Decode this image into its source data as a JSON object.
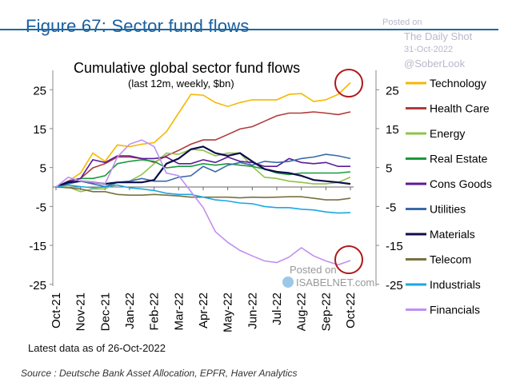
{
  "figure_title": "Figure 67: Sector fund flows",
  "watermarks": {
    "posted_on": "Posted on",
    "site": "The Daily Shot",
    "date": "31-Oct-2022",
    "handle": "@SoberLook",
    "isabel_posted": "Posted on",
    "isabel_site": "ISABELNET.com"
  },
  "footnote": "Latest data as of 26-Oct-2022",
  "source": "Source : Deutsche Bank Asset Allocation, EPFR, Haver Analytics",
  "chart_data": {
    "type": "line",
    "title": "Cumulative global sector fund flows",
    "subtitle": "(last 12m, weekly, $bn)",
    "xlabel": "",
    "ylabel": "",
    "ylim": [
      -25,
      30
    ],
    "yticks": [
      "25",
      "15",
      "5",
      "-5",
      "-15",
      "-25"
    ],
    "yticks_right": [
      "25",
      "15",
      "5",
      "-5",
      "-15",
      "-25"
    ],
    "xticks": [
      "Oct-21",
      "Nov-21",
      "Dec-21",
      "Jan-22",
      "Feb-22",
      "Mar-22",
      "Apr-22",
      "May-22",
      "Jun-22",
      "Jul-22",
      "Aug-22",
      "Sep-22",
      "Oct-22"
    ],
    "x": [
      0,
      0.5,
      1,
      1.5,
      2,
      2.5,
      3,
      3.5,
      4,
      4.5,
      5,
      5.5,
      6,
      6.5,
      7,
      7.5,
      8,
      8.5,
      9,
      9.5,
      10,
      10.5,
      11,
      11.5,
      12
    ],
    "legend_position": "right",
    "series": [
      {
        "name": "Technology",
        "color": "#f5b800",
        "values": [
          0,
          1.5,
          3.6,
          8.7,
          6.6,
          10.8,
          10.4,
          11,
          11.4,
          14.2,
          19,
          23.8,
          23.6,
          21.7,
          20.7,
          21.7,
          22.4,
          22.4,
          22.4,
          23.8,
          24,
          22,
          22.4,
          23.8,
          26.8
        ]
      },
      {
        "name": "Health Care",
        "color": "#b03a3a",
        "values": [
          0,
          1.5,
          2.2,
          4.9,
          6,
          7.7,
          7.7,
          7.3,
          6.3,
          8,
          9.4,
          11,
          12.1,
          12.1,
          13.5,
          14.9,
          15.5,
          16.9,
          18.3,
          19,
          19,
          19.3,
          19,
          18.6,
          19.3
        ]
      },
      {
        "name": "Energy",
        "color": "#8fc34a",
        "values": [
          0,
          0,
          -1.2,
          -0.5,
          -0.5,
          1.2,
          1.5,
          3.2,
          6,
          8.7,
          8.4,
          9.7,
          9.4,
          8,
          8.7,
          8.7,
          5.3,
          2.5,
          2.2,
          1.5,
          1.2,
          0.8,
          0.8,
          1.2,
          2.5
        ]
      },
      {
        "name": "Real Estate",
        "color": "#1a9a3a",
        "values": [
          0,
          1.5,
          2.2,
          2.2,
          2.9,
          6,
          6.6,
          7,
          6.6,
          4.9,
          5.3,
          5.3,
          6,
          5.6,
          6,
          5.6,
          5.3,
          4.6,
          3.6,
          3.2,
          3.6,
          3.6,
          3.6,
          3.6,
          3.9
        ]
      },
      {
        "name": "Cons Goods",
        "color": "#5a1a9a",
        "values": [
          0,
          1.5,
          2.2,
          7,
          6.3,
          8,
          8,
          7.3,
          7.3,
          7.7,
          6,
          6,
          7,
          6.3,
          7.7,
          6.6,
          6.3,
          5.3,
          5.3,
          7.3,
          6.3,
          6,
          6.3,
          5.3,
          5.3
        ]
      },
      {
        "name": "Utilities",
        "color": "#3a6aa8",
        "values": [
          0,
          0.8,
          1.5,
          0.8,
          0.1,
          1.2,
          1.5,
          2.2,
          1.5,
          1.5,
          2.5,
          2.9,
          5.3,
          3.9,
          5.6,
          6.3,
          5.6,
          6.6,
          6.3,
          6.6,
          7.3,
          7.7,
          8.4,
          8,
          7.3
        ]
      },
      {
        "name": "Materials",
        "color": "#0d0d4a",
        "values": [
          0,
          1.2,
          1.5,
          1.2,
          0.8,
          1.2,
          1.2,
          1.2,
          1.8,
          6,
          7.3,
          9.7,
          10.4,
          8.7,
          8,
          8.7,
          6.6,
          4.6,
          3.9,
          3.6,
          2.9,
          1.8,
          1.5,
          1.2,
          0.8
        ]
      },
      {
        "name": "Telecom",
        "color": "#7a7040",
        "values": [
          0,
          -0.2,
          -0.5,
          -1.2,
          -1.2,
          -1.9,
          -2.1,
          -2.1,
          -1.9,
          -2.1,
          -2.3,
          -2.6,
          -2.6,
          -2.6,
          -2.6,
          -2.8,
          -2.6,
          -2.7,
          -2.6,
          -2.5,
          -2.5,
          -2.9,
          -3.3,
          -3.3,
          -2.9
        ]
      },
      {
        "name": "Industrials",
        "color": "#1aa8e0",
        "values": [
          0,
          0.5,
          0.1,
          -0.2,
          0,
          0.5,
          -0.2,
          -0.5,
          -0.9,
          -1.6,
          -1.9,
          -1.9,
          -2.6,
          -3.3,
          -3.6,
          -4.1,
          -4.3,
          -5,
          -5.3,
          -5.3,
          -5.7,
          -5.9,
          -6.4,
          -6.7,
          -6.6
        ]
      },
      {
        "name": "Financials",
        "color": "#c090f0",
        "values": [
          0,
          2.5,
          1.5,
          1.2,
          0.8,
          7.7,
          11,
          12.1,
          10.4,
          3.6,
          2.9,
          -1.2,
          -5.3,
          -11.5,
          -14.2,
          -16.3,
          -17.7,
          -19,
          -19.4,
          -18,
          -15.6,
          -17.7,
          -19,
          -20,
          -18.9
        ]
      }
    ],
    "annotations": [
      "red circle around latest Technology value",
      "red circle around latest Financials value"
    ]
  }
}
